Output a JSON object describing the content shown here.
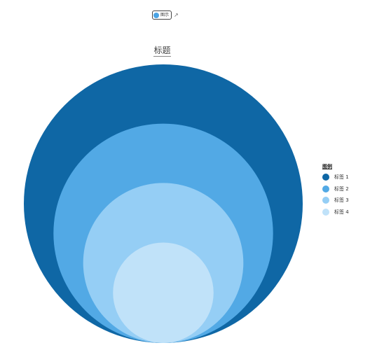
{
  "toolbar": {
    "toggle_label": "图示",
    "share_icon": "share-icon"
  },
  "chart_data": {
    "type": "bubble-nested",
    "title": "标题",
    "legend": {
      "title": "图例",
      "placement": "right"
    },
    "series": [
      {
        "name": "标签 1",
        "value": 100,
        "color": "#0f67a5"
      },
      {
        "name": "标签 2",
        "value": 62,
        "color": "#52a9e5"
      },
      {
        "name": "标签 3",
        "value": 33,
        "color": "#95cef5"
      },
      {
        "name": "标签 4",
        "value": 13,
        "color": "#c0e2f9"
      }
    ]
  }
}
